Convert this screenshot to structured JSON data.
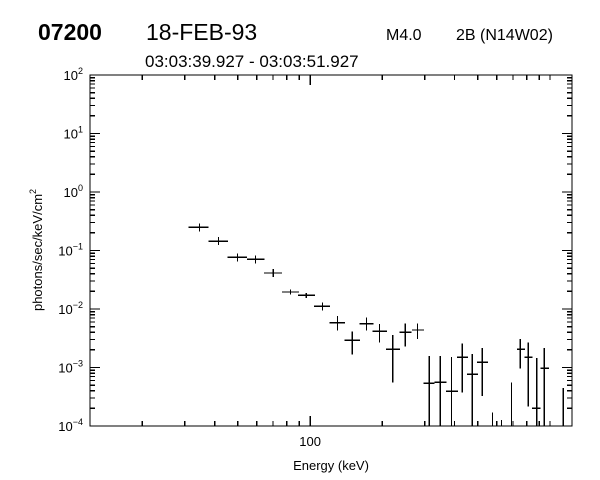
{
  "header": {
    "event_id": "07200",
    "date": "18-FEB-93",
    "goes_class": "M4.0",
    "optical_class": "2B (N14W02)",
    "time_range": "03:03:39.927 - 03:03:51.927"
  },
  "chart_data": {
    "type": "scatter",
    "style": "error bars (crosses), black on white",
    "xlabel": "Energy (keV)",
    "ylabel": "photons/sec/keV/cm",
    "ylabel_superscript": "2",
    "x_scale": "log",
    "y_scale": "log",
    "xlim": [
      12.1,
      1234
    ],
    "ylim": [
      0.0001,
      100
    ],
    "grid": false,
    "x_tick_labels": [
      {
        "value": 100,
        "label": "100"
      }
    ],
    "x_minor_ticks": [
      20,
      30,
      40,
      50,
      60,
      70,
      80,
      90,
      200,
      300,
      400,
      500,
      600,
      700,
      800,
      900,
      1000
    ],
    "y_tick_labels": [
      {
        "value": 100,
        "base": "10",
        "exp": "2"
      },
      {
        "value": 10,
        "base": "10",
        "exp": "1"
      },
      {
        "value": 1,
        "base": "10",
        "exp": "0"
      },
      {
        "value": 0.1,
        "base": "10",
        "exp": "−1"
      },
      {
        "value": 0.01,
        "base": "10",
        "exp": "−2"
      },
      {
        "value": 0.001,
        "base": "10",
        "exp": "−3"
      },
      {
        "value": 0.0001,
        "base": "10",
        "exp": "−4"
      }
    ],
    "points": [
      {
        "x": 34.6,
        "xlo": 31.1,
        "xhi": 37.8,
        "y": 0.249
      },
      {
        "x": 41.5,
        "xlo": 37.7,
        "xhi": 45.4,
        "y": 0.144
      },
      {
        "x": 49.8,
        "xlo": 45.2,
        "xhi": 54.5,
        "y": 0.0764
      },
      {
        "x": 59.2,
        "xlo": 54.5,
        "xhi": 64.7,
        "y": 0.0707
      },
      {
        "x": 70.3,
        "xlo": 64.3,
        "xhi": 76.5,
        "y": 0.0412
      },
      {
        "x": 82.8,
        "xlo": 76.2,
        "xhi": 89.7,
        "y": 0.0195,
        "ylo": 0.0178,
        "yhi": 0.0216
      },
      {
        "x": 96.5,
        "xlo": 88.9,
        "xhi": 104.6,
        "y": 0.0171,
        "ylo": 0.0155,
        "yhi": 0.0189
      },
      {
        "x": 112.6,
        "xlo": 103.9,
        "xhi": 121.2,
        "y": 0.0111,
        "ylo": 0.0095,
        "yhi": 0.013
      },
      {
        "x": 130,
        "xlo": 120.4,
        "xhi": 139.9,
        "y": 0.00583,
        "ylo": 0.00426,
        "yhi": 0.00759
      },
      {
        "x": 150,
        "xlo": 139,
        "xhi": 161.6,
        "y": 0.00292,
        "ylo": 0.00166,
        "yhi": 0.00416
      },
      {
        "x": 171.7,
        "xlo": 160.5,
        "xhi": 183.6,
        "y": 0.00561,
        "ylo": 0.00426,
        "yhi": 0.00722
      },
      {
        "x": 194.5,
        "xlo": 181.7,
        "xhi": 208.8,
        "y": 0.00416,
        "ylo": 0.00265,
        "yhi": 0.00554
      },
      {
        "x": 221,
        "xlo": 207.4,
        "xhi": 237,
        "y": 0.00205,
        "ylo": 0.00055,
        "yhi": 0.0036
      },
      {
        "x": 249.5,
        "xlo": 235.4,
        "xhi": 264,
        "y": 0.004,
        "ylo": 0.00227,
        "yhi": 0.00569
      },
      {
        "x": 280,
        "xlo": 265.6,
        "xhi": 298,
        "y": 0.00438,
        "ylo": 0.0031,
        "yhi": 0.00569
      },
      {
        "x": 314,
        "xlo": 296.6,
        "xhi": 330,
        "y": 0.000537,
        "ylo": null,
        "yhi": 0.00157
      },
      {
        "x": 349,
        "xlo": 330,
        "xhi": 371,
        "y": 0.000558,
        "ylo": null,
        "yhi": 0.00157
      },
      {
        "x": 388,
        "xlo": 368,
        "xhi": 414,
        "y": 0.000392,
        "ylo": null,
        "yhi": 0.00151
      },
      {
        "x": 431,
        "xlo": 409,
        "xhi": 455,
        "y": 0.00149,
        "ylo": 0.000371,
        "yhi": 0.00259
      },
      {
        "x": 474,
        "xlo": 450,
        "xhi": 501,
        "y": 0.000764,
        "ylo": null,
        "yhi": 0.0017
      },
      {
        "x": 522,
        "xlo": 495,
        "xhi": 551,
        "y": 0.00123,
        "ylo": 0.000326,
        "yhi": 0.00215
      },
      {
        "x": 575,
        "y": null,
        "ylo": null,
        "yhi": 0.000169
      },
      {
        "x": 627,
        "y": null,
        "ylo": null,
        "yhi": 0.000127
      },
      {
        "x": 690,
        "y": null,
        "ylo": null,
        "yhi": 0.00055
      },
      {
        "x": 750,
        "xlo": 728,
        "xhi": 787,
        "y": 0.00205,
        "ylo": 0.000953,
        "yhi": 0.00307
      },
      {
        "x": 812,
        "xlo": 781,
        "xhi": 846,
        "y": 0.00149,
        "ylo": 0.000214,
        "yhi": 0.0027
      },
      {
        "x": 880,
        "xlo": 842,
        "xhi": 914,
        "y": 0.0002,
        "ylo": null,
        "yhi": 0.00145
      },
      {
        "x": 946,
        "xlo": 910,
        "xhi": 989,
        "y": 0.00097,
        "ylo": null,
        "yhi": 0.00215
      },
      {
        "x": 1135,
        "y": null,
        "ylo": null,
        "yhi": 0.000446
      }
    ]
  }
}
